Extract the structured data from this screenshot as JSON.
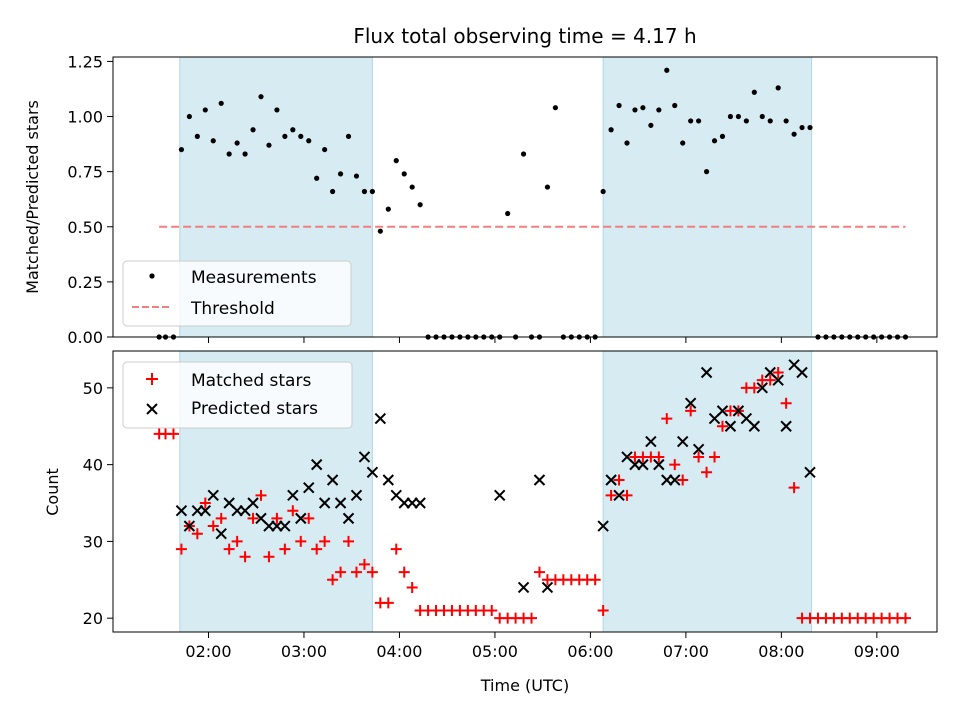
{
  "chart_data": [
    {
      "type": "scatter",
      "title": "Flux total observing time = 4.17 h",
      "xlabel": "",
      "ylabel": "Matched/Predicted stars",
      "ylim": [
        0,
        1.27
      ],
      "yticks": [
        "0.00",
        "0.25",
        "0.50",
        "0.75",
        "1.00",
        "1.25"
      ],
      "grid": false,
      "legend_position": "lower-left",
      "shaded_intervals": [
        [
          "01:42",
          "03:43"
        ],
        [
          "06:08",
          "08:19"
        ]
      ],
      "shade_color": "#add8e6",
      "series": [
        {
          "name": "Measurements",
          "marker": "dot",
          "color": "#000000",
          "x": [
            "01:29",
            "01:33",
            "01:38",
            "01:43",
            "01:48",
            "01:53",
            "01:58",
            "02:03",
            "02:08",
            "02:13",
            "02:18",
            "02:23",
            "02:28",
            "02:33",
            "02:38",
            "02:43",
            "02:48",
            "02:53",
            "02:58",
            "03:03",
            "03:08",
            "03:13",
            "03:18",
            "03:23",
            "03:28",
            "03:33",
            "03:38",
            "03:43",
            "03:48",
            "03:53",
            "03:58",
            "04:03",
            "04:08",
            "04:13",
            "04:18",
            "04:23",
            "04:28",
            "04:33",
            "04:38",
            "04:43",
            "04:48",
            "04:53",
            "04:58",
            "05:03",
            "05:08",
            "05:13",
            "05:18",
            "05:23",
            "05:28",
            "05:33",
            "05:38",
            "05:43",
            "05:48",
            "05:53",
            "05:58",
            "06:03",
            "06:08",
            "06:13",
            "06:18",
            "06:23",
            "06:28",
            "06:33",
            "06:38",
            "06:43",
            "06:48",
            "06:53",
            "06:58",
            "07:03",
            "07:08",
            "07:13",
            "07:18",
            "07:23",
            "07:28",
            "07:33",
            "07:38",
            "07:43",
            "07:48",
            "07:53",
            "07:58",
            "08:03",
            "08:08",
            "08:13",
            "08:18",
            "08:23",
            "08:28",
            "08:33",
            "08:38",
            "08:43",
            "08:48",
            "08:53",
            "08:58",
            "09:03",
            "09:08",
            "09:13",
            "09:18"
          ],
          "y": [
            0,
            0,
            0,
            0.85,
            1.0,
            0.91,
            1.03,
            0.89,
            1.06,
            0.83,
            0.88,
            0.83,
            0.94,
            1.09,
            0.87,
            1.03,
            0.91,
            0.94,
            0.91,
            0.89,
            0.72,
            0.85,
            0.66,
            0.74,
            0.91,
            0.73,
            0.66,
            0.66,
            0.48,
            0.58,
            0.8,
            0.74,
            0.68,
            0.6,
            0,
            0,
            0,
            0,
            0,
            0,
            0,
            0,
            0,
            0,
            0.56,
            0,
            0.83,
            0,
            0,
            0.68,
            1.04,
            0,
            0,
            0,
            0,
            0,
            0.66,
            0.94,
            1.05,
            0.88,
            1.03,
            1.04,
            0.96,
            1.03,
            1.21,
            1.05,
            0.88,
            0.98,
            0.98,
            0.75,
            0.89,
            0.91,
            1.0,
            1.0,
            0.98,
            1.11,
            1.0,
            0.98,
            1.13,
            0.98,
            0.92,
            0.95,
            0.95,
            0,
            0,
            0,
            0,
            0,
            0,
            0,
            0,
            0,
            0,
            0,
            0
          ]
        },
        {
          "name": "Threshold",
          "marker": "dashed-line",
          "color": "#f08080",
          "x": [
            "01:29",
            "09:18"
          ],
          "y": [
            0.5,
            0.5
          ]
        }
      ]
    },
    {
      "type": "scatter",
      "title": "",
      "xlabel": "Time (UTC)",
      "ylabel": "Count",
      "ylim": [
        18.2,
        54.8
      ],
      "yticks": [
        "20",
        "30",
        "40",
        "50"
      ],
      "xticks": [
        "02:00",
        "03:00",
        "04:00",
        "05:00",
        "06:00",
        "07:00",
        "08:00",
        "09:00"
      ],
      "grid": false,
      "legend_position": "upper-left",
      "shaded_intervals": [
        [
          "01:42",
          "03:43"
        ],
        [
          "06:08",
          "08:19"
        ]
      ],
      "shade_color": "#add8e6",
      "series": [
        {
          "name": "Matched stars",
          "marker": "plus",
          "color": "#ff0000",
          "x": [
            "01:29",
            "01:33",
            "01:38",
            "01:43",
            "01:48",
            "01:53",
            "01:58",
            "02:03",
            "02:08",
            "02:13",
            "02:18",
            "02:23",
            "02:28",
            "02:33",
            "02:38",
            "02:43",
            "02:48",
            "02:53",
            "02:58",
            "03:03",
            "03:08",
            "03:13",
            "03:18",
            "03:23",
            "03:28",
            "03:33",
            "03:38",
            "03:43",
            "03:48",
            "03:53",
            "03:58",
            "04:03",
            "04:08",
            "04:13",
            "04:18",
            "04:23",
            "04:28",
            "04:33",
            "04:38",
            "04:43",
            "04:48",
            "04:53",
            "04:58",
            "05:03",
            "05:08",
            "05:13",
            "05:18",
            "05:23",
            "05:28",
            "05:33",
            "05:38",
            "05:43",
            "05:48",
            "05:53",
            "05:58",
            "06:03",
            "06:08",
            "06:13",
            "06:18",
            "06:23",
            "06:28",
            "06:33",
            "06:38",
            "06:43",
            "06:48",
            "06:53",
            "06:58",
            "07:03",
            "07:08",
            "07:13",
            "07:18",
            "07:23",
            "07:28",
            "07:33",
            "07:38",
            "07:43",
            "07:48",
            "07:53",
            "07:58",
            "08:03",
            "08:08",
            "08:13",
            "08:18",
            "08:23",
            "08:28",
            "08:33",
            "08:38",
            "08:43",
            "08:48",
            "08:53",
            "08:58",
            "09:03",
            "09:08",
            "09:13",
            "09:18"
          ],
          "y": [
            44,
            44,
            44,
            29,
            32,
            31,
            35,
            32,
            33,
            29,
            30,
            28,
            33,
            36,
            28,
            33,
            29,
            34,
            30,
            33,
            29,
            30,
            25,
            26,
            30,
            26,
            27,
            26,
            22,
            22,
            29,
            26,
            24,
            21,
            21,
            21,
            21,
            21,
            21,
            21,
            21,
            21,
            21,
            20,
            20,
            20,
            20,
            20,
            26,
            25,
            25,
            25,
            25,
            25,
            25,
            25,
            21,
            36,
            38,
            36,
            41,
            41,
            41,
            41,
            46,
            40,
            38,
            47,
            41,
            39,
            41,
            45,
            47,
            47,
            50,
            50,
            51,
            51,
            52,
            48,
            37,
            20,
            20,
            20,
            20,
            20,
            20,
            20,
            20,
            20,
            20,
            20,
            20,
            20,
            20
          ]
        },
        {
          "name": "Predicted stars",
          "marker": "x",
          "color": "#000000",
          "x": [
            "01:43",
            "01:48",
            "01:53",
            "01:58",
            "02:03",
            "02:08",
            "02:13",
            "02:18",
            "02:23",
            "02:28",
            "02:33",
            "02:38",
            "02:43",
            "02:48",
            "02:53",
            "02:58",
            "03:03",
            "03:08",
            "03:13",
            "03:18",
            "03:23",
            "03:28",
            "03:33",
            "03:38",
            "03:43",
            "03:48",
            "03:53",
            "03:58",
            "04:03",
            "04:08",
            "04:13",
            "05:03",
            "05:18",
            "05:28",
            "05:33",
            "06:08",
            "06:13",
            "06:18",
            "06:23",
            "06:28",
            "06:33",
            "06:38",
            "06:43",
            "06:48",
            "06:53",
            "06:58",
            "07:03",
            "07:08",
            "07:13",
            "07:18",
            "07:23",
            "07:28",
            "07:33",
            "07:38",
            "07:43",
            "07:48",
            "07:53",
            "07:58",
            "08:03",
            "08:08",
            "08:13",
            "08:18"
          ],
          "y": [
            34,
            32,
            34,
            34,
            36,
            31,
            35,
            34,
            34,
            35,
            33,
            32,
            32,
            32,
            36,
            33,
            37,
            40,
            35,
            38,
            35,
            33,
            36,
            41,
            39,
            46,
            38,
            36,
            35,
            35,
            35,
            36,
            24,
            38,
            24,
            32,
            38,
            36,
            41,
            40,
            40,
            43,
            40,
            38,
            38,
            43,
            48,
            42,
            52,
            46,
            47,
            45,
            47,
            46,
            45,
            50,
            52,
            51,
            45,
            53,
            52,
            39
          ]
        }
      ]
    }
  ]
}
